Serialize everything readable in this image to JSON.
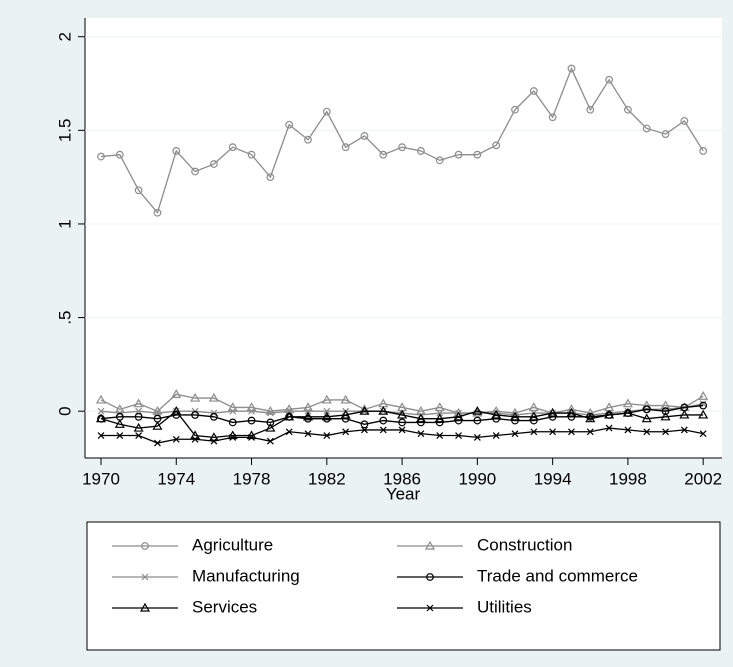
{
  "chart_data": {
    "type": "line",
    "x_label": "Year",
    "x": [
      1970,
      1971,
      1972,
      1973,
      1974,
      1975,
      1976,
      1977,
      1978,
      1979,
      1980,
      1981,
      1982,
      1983,
      1984,
      1985,
      1986,
      1987,
      1988,
      1989,
      1990,
      1991,
      1992,
      1993,
      1994,
      1995,
      1996,
      1997,
      1998,
      1999,
      2000,
      2001,
      2002
    ],
    "xlim": [
      1969.15,
      2003
    ],
    "xticks": [
      1970,
      1974,
      1978,
      1982,
      1986,
      1990,
      1994,
      1998,
      2002
    ],
    "ylim": [
      -0.25,
      2.1
    ],
    "yticks": [
      0,
      {
        "value": 0.5,
        "label": ".5"
      },
      1,
      1.5,
      2
    ],
    "grid": true,
    "series": [
      {
        "name": "Agriculture",
        "color": "#8c8c8c",
        "marker": "circle",
        "values": [
          1.36,
          1.37,
          1.18,
          1.06,
          1.39,
          1.28,
          1.32,
          1.41,
          1.37,
          1.25,
          1.53,
          1.45,
          1.6,
          1.41,
          1.47,
          1.37,
          1.41,
          1.39,
          1.34,
          1.37,
          1.37,
          1.42,
          1.61,
          1.71,
          1.57,
          1.83,
          1.61,
          1.77,
          1.61,
          1.51,
          1.48,
          1.55,
          1.39
        ]
      },
      {
        "name": "Construction",
        "color": "#8c8c8c",
        "marker": "triangle",
        "values": [
          0.06,
          0.01,
          0.04,
          0.0,
          0.09,
          0.07,
          0.07,
          0.02,
          0.02,
          0.0,
          0.01,
          0.02,
          0.06,
          0.06,
          0.01,
          0.04,
          0.02,
          0.0,
          0.02,
          -0.01,
          -0.01,
          0.0,
          -0.01,
          0.02,
          -0.01,
          0.01,
          -0.01,
          0.02,
          0.04,
          0.03,
          0.03,
          0.02,
          0.08
        ]
      },
      {
        "name": "Manufacturing",
        "color": "#8c8c8c",
        "marker": "x",
        "values": [
          0.0,
          -0.01,
          0.0,
          -0.01,
          0.0,
          0.0,
          -0.01,
          0.0,
          0.0,
          -0.01,
          0.0,
          0.0,
          0.0,
          0.0,
          0.0,
          0.0,
          -0.01,
          -0.02,
          -0.01,
          -0.01,
          -0.01,
          -0.01,
          -0.02,
          -0.01,
          -0.01,
          -0.01,
          -0.02,
          -0.01,
          0.0,
          0.01,
          0.01,
          0.02,
          0.04
        ]
      },
      {
        "name": "Trade and commerce",
        "color": "#000000",
        "marker": "circle",
        "values": [
          -0.04,
          -0.03,
          -0.03,
          -0.04,
          -0.02,
          -0.02,
          -0.03,
          -0.06,
          -0.05,
          -0.06,
          -0.03,
          -0.04,
          -0.04,
          -0.04,
          -0.07,
          -0.05,
          -0.06,
          -0.06,
          -0.06,
          -0.05,
          -0.05,
          -0.04,
          -0.05,
          -0.05,
          -0.03,
          -0.03,
          -0.03,
          -0.02,
          -0.01,
          0.01,
          0.0,
          0.02,
          0.03
        ]
      },
      {
        "name": "Services",
        "color": "#000000",
        "marker": "triangle",
        "values": [
          -0.04,
          -0.07,
          -0.09,
          -0.08,
          0.0,
          -0.13,
          -0.14,
          -0.13,
          -0.13,
          -0.09,
          -0.03,
          -0.03,
          -0.03,
          -0.02,
          0.0,
          0.0,
          -0.02,
          -0.04,
          -0.04,
          -0.03,
          0.0,
          -0.02,
          -0.03,
          -0.03,
          -0.01,
          -0.01,
          -0.04,
          -0.02,
          -0.01,
          -0.04,
          -0.03,
          -0.02,
          -0.02
        ]
      },
      {
        "name": "Utilities",
        "color": "#000000",
        "marker": "x",
        "values": [
          -0.13,
          -0.13,
          -0.13,
          -0.17,
          -0.15,
          -0.15,
          -0.16,
          -0.14,
          -0.14,
          -0.16,
          -0.11,
          -0.12,
          -0.13,
          -0.11,
          -0.1,
          -0.1,
          -0.1,
          -0.12,
          -0.13,
          -0.13,
          -0.14,
          -0.13,
          -0.12,
          -0.11,
          -0.11,
          -0.11,
          -0.11,
          -0.09,
          -0.1,
          -0.11,
          -0.11,
          -0.1,
          -0.12
        ]
      }
    ]
  }
}
